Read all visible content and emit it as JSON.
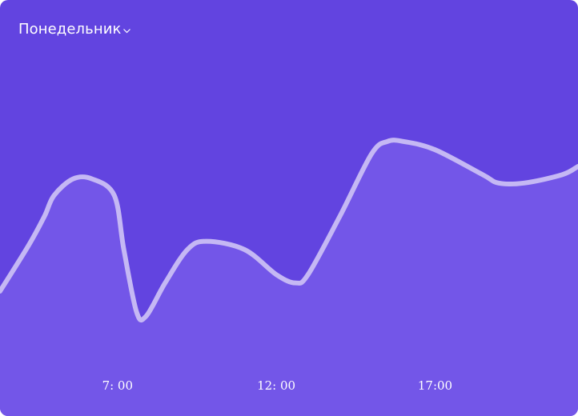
{
  "header": {
    "day_selector": "Понедельник",
    "chevron_icon": "chevron-down-icon"
  },
  "colors": {
    "background": "#6244e0",
    "area_fill": "#7356e8",
    "line": "#c5b8f4",
    "text": "#ffffff"
  },
  "chart_data": {
    "type": "area",
    "title": "",
    "xlabel": "",
    "ylabel": "",
    "x_ticks": [
      "7: 00",
      "12: 00",
      "17:00"
    ],
    "x_tick_hours": [
      7,
      12,
      17
    ],
    "x_range": [
      3.3,
      21.5
    ],
    "y_range": [
      0,
      100
    ],
    "series": [
      {
        "x": [
          3.3,
          4.2,
          4.7,
          5.0,
          5.6,
          6.2,
          6.9,
          7.2,
          7.6,
          7.9,
          8.5,
          9.2,
          9.8,
          11.0,
          12.0,
          12.6,
          13.0,
          14.0,
          15.0,
          15.5,
          16.0,
          17.0,
          18.5,
          19.0,
          19.8,
          21.0,
          21.5
        ],
        "y": [
          30,
          41,
          48,
          53,
          57,
          57,
          53,
          40,
          25,
          24,
          32,
          40,
          42,
          40,
          34,
          32,
          34,
          48,
          63,
          66,
          66,
          64,
          58,
          56,
          56,
          58,
          60
        ]
      }
    ]
  }
}
